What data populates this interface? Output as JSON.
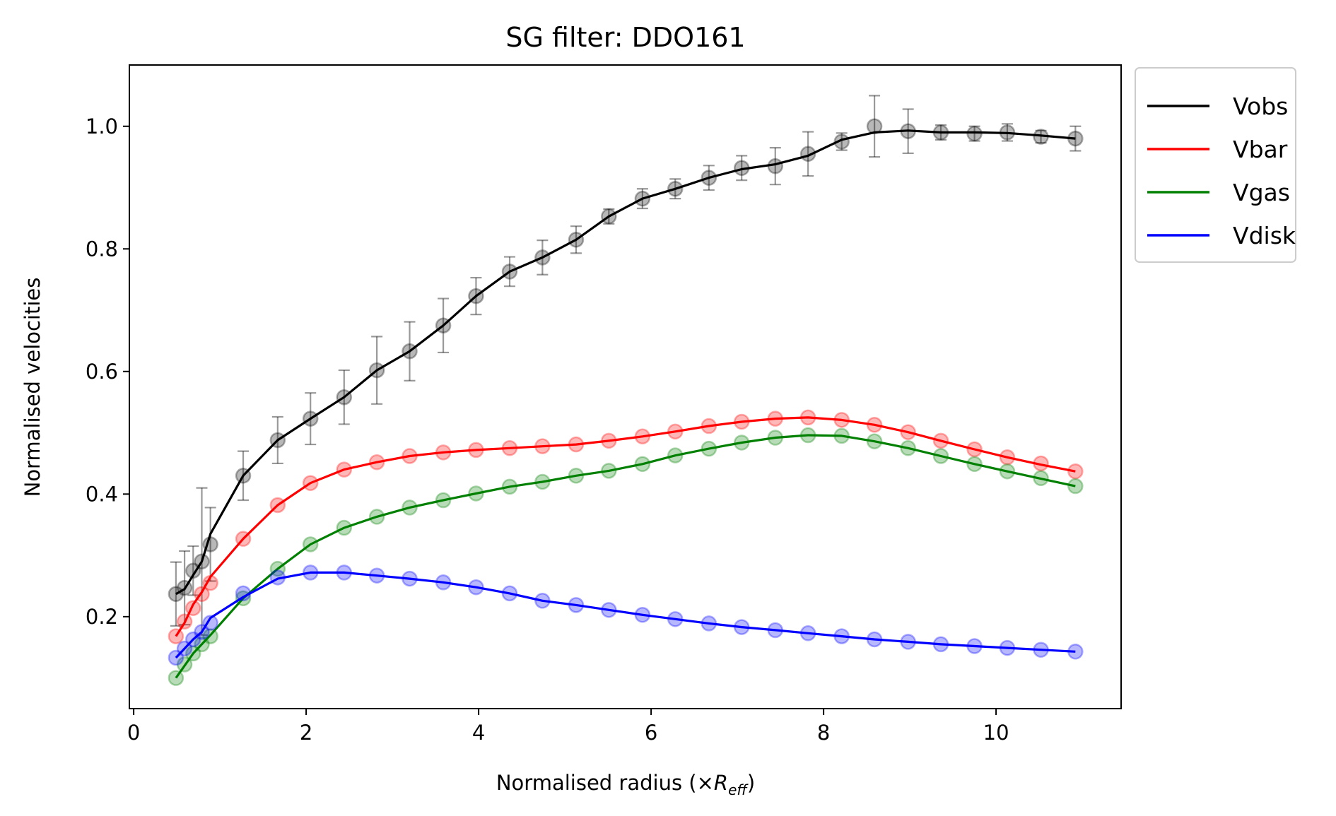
{
  "chart_data": {
    "type": "line",
    "title": "SG filter: DDO161",
    "xlabel_prefix": "Normalised radius (×",
    "xlabel_symbol": "R",
    "xlabel_subscript": "eff",
    "xlabel_suffix": ")",
    "ylabel": "Normalised velocities",
    "xlim": [
      -0.05,
      11.45
    ],
    "ylim": [
      0.05,
      1.1
    ],
    "xticks": [
      0,
      2,
      4,
      6,
      8,
      10
    ],
    "xtick_labels": [
      "0",
      "2",
      "4",
      "6",
      "8",
      "10"
    ],
    "yticks": [
      0.2,
      0.4,
      0.6,
      0.8,
      1.0
    ],
    "ytick_labels": [
      "0.2",
      "0.4",
      "0.6",
      "0.8",
      "1.0"
    ],
    "grid": false,
    "legend_position": "outside-top-right",
    "x": [
      0.49,
      0.59,
      0.69,
      0.79,
      0.89,
      1.27,
      1.67,
      2.05,
      2.44,
      2.82,
      3.2,
      3.59,
      3.97,
      4.36,
      4.74,
      5.13,
      5.51,
      5.9,
      6.28,
      6.67,
      7.05,
      7.44,
      7.82,
      8.21,
      8.59,
      8.98,
      9.36,
      9.75,
      10.13,
      10.52,
      10.92
    ],
    "series": [
      {
        "name": "Vobs",
        "color": "#000000",
        "points": [
          0.237,
          0.247,
          0.275,
          0.29,
          0.318,
          0.43,
          0.488,
          0.523,
          0.558,
          0.602,
          0.633,
          0.675,
          0.723,
          0.763,
          0.786,
          0.815,
          0.853,
          0.882,
          0.898,
          0.916,
          0.932,
          0.935,
          0.955,
          0.975,
          1.0,
          0.992,
          0.99,
          0.988,
          0.99,
          0.983,
          0.98
        ],
        "errors": [
          0.052,
          0.06,
          0.04,
          0.12,
          0.06,
          0.04,
          0.038,
          0.042,
          0.044,
          0.055,
          0.048,
          0.044,
          0.03,
          0.024,
          0.028,
          0.022,
          0.012,
          0.016,
          0.016,
          0.02,
          0.02,
          0.03,
          0.036,
          0.014,
          0.05,
          0.036,
          0.012,
          0.012,
          0.014,
          0.01,
          0.02
        ],
        "smoothed": [
          0.237,
          0.245,
          0.268,
          0.29,
          0.335,
          0.43,
          0.488,
          0.523,
          0.558,
          0.602,
          0.633,
          0.675,
          0.723,
          0.763,
          0.786,
          0.815,
          0.853,
          0.882,
          0.898,
          0.916,
          0.93,
          0.938,
          0.952,
          0.978,
          0.99,
          0.993,
          0.99,
          0.99,
          0.989,
          0.985,
          0.98
        ]
      },
      {
        "name": "Vbar",
        "color": "#ff0000",
        "points": [
          0.168,
          0.192,
          0.214,
          0.237,
          0.255,
          0.327,
          0.382,
          0.418,
          0.44,
          0.452,
          0.462,
          0.468,
          0.472,
          0.475,
          0.478,
          0.481,
          0.487,
          0.494,
          0.502,
          0.511,
          0.518,
          0.523,
          0.525,
          0.521,
          0.513,
          0.501,
          0.487,
          0.473,
          0.46,
          0.45,
          0.437
        ],
        "smoothed": [
          0.168,
          0.19,
          0.22,
          0.24,
          0.265,
          0.327,
          0.382,
          0.418,
          0.44,
          0.452,
          0.462,
          0.468,
          0.472,
          0.475,
          0.478,
          0.481,
          0.487,
          0.494,
          0.502,
          0.511,
          0.518,
          0.523,
          0.525,
          0.521,
          0.513,
          0.501,
          0.487,
          0.473,
          0.46,
          0.448,
          0.437
        ]
      },
      {
        "name": "Vgas",
        "color": "#008000",
        "points": [
          0.1,
          0.122,
          0.14,
          0.155,
          0.168,
          0.23,
          0.278,
          0.318,
          0.345,
          0.363,
          0.378,
          0.39,
          0.401,
          0.412,
          0.42,
          0.43,
          0.438,
          0.449,
          0.463,
          0.474,
          0.484,
          0.492,
          0.496,
          0.495,
          0.486,
          0.475,
          0.462,
          0.449,
          0.437,
          0.426,
          0.413
        ],
        "smoothed": [
          0.1,
          0.12,
          0.14,
          0.155,
          0.17,
          0.23,
          0.278,
          0.318,
          0.345,
          0.363,
          0.378,
          0.39,
          0.401,
          0.412,
          0.42,
          0.43,
          0.438,
          0.449,
          0.463,
          0.474,
          0.484,
          0.492,
          0.496,
          0.495,
          0.486,
          0.475,
          0.462,
          0.449,
          0.437,
          0.425,
          0.413
        ]
      },
      {
        "name": "Vdisk",
        "color": "#0000ff",
        "points": [
          0.133,
          0.148,
          0.163,
          0.175,
          0.19,
          0.238,
          0.264,
          0.272,
          0.272,
          0.267,
          0.262,
          0.256,
          0.248,
          0.238,
          0.226,
          0.219,
          0.211,
          0.203,
          0.196,
          0.189,
          0.183,
          0.178,
          0.173,
          0.168,
          0.163,
          0.159,
          0.155,
          0.152,
          0.149,
          0.146,
          0.143
        ],
        "smoothed": [
          0.133,
          0.148,
          0.163,
          0.175,
          0.198,
          0.232,
          0.262,
          0.272,
          0.272,
          0.267,
          0.262,
          0.256,
          0.248,
          0.238,
          0.226,
          0.219,
          0.211,
          0.203,
          0.196,
          0.189,
          0.183,
          0.178,
          0.173,
          0.168,
          0.163,
          0.159,
          0.155,
          0.152,
          0.149,
          0.146,
          0.143
        ]
      }
    ]
  }
}
